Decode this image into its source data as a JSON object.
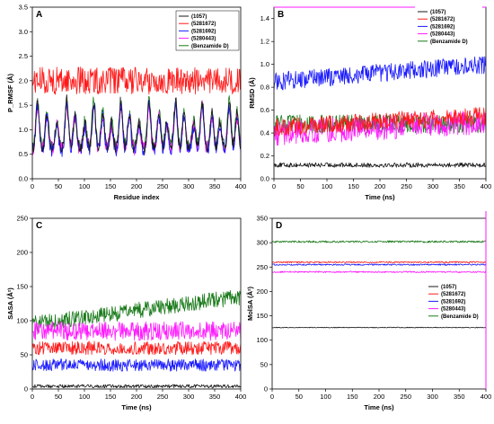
{
  "series_colors": [
    "#1a1a1a",
    "#ff1a1a",
    "#1a1aff",
    "#ff1aff",
    "#1a7a1a"
  ],
  "chart_data": [
    {
      "type": "line",
      "panel_letter": "A",
      "xlabel": "Residue index",
      "ylabel": "P_RMSF (Å)",
      "xlim": [
        0,
        400
      ],
      "ylim": [
        0,
        3.5
      ],
      "xticks": [
        0,
        50,
        100,
        150,
        200,
        250,
        300,
        350,
        400
      ],
      "yticks": [
        0.0,
        0.5,
        1.0,
        1.5,
        2.0,
        2.5,
        3.0,
        3.5
      ],
      "ytick_decimals": 1,
      "legend_position": "top-right",
      "grid": false,
      "series": [
        {
          "name": "(1057)",
          "profile": "rmsf",
          "base": 0.95,
          "amp": 1.0,
          "noise": 0.12
        },
        {
          "name": "(5281672)",
          "profile": "flat",
          "base": 2.0,
          "amp": 0.0,
          "noise": 0.28
        },
        {
          "name": "(5281692)",
          "profile": "rmsf",
          "base": 0.9,
          "amp": 0.95,
          "noise": 0.12
        },
        {
          "name": "(5280443)",
          "profile": "rmsf",
          "base": 0.95,
          "amp": 0.9,
          "noise": 0.14
        },
        {
          "name": "(Benzamide D)",
          "profile": "rmsf",
          "base": 1.0,
          "amp": 0.95,
          "noise": 0.13
        }
      ]
    },
    {
      "type": "line",
      "panel_letter": "B",
      "xlabel": "Time (ns)",
      "ylabel": "RMSD (Å)",
      "xlim": [
        0,
        400
      ],
      "ylim": [
        0,
        1.5
      ],
      "xticks": [
        0,
        50,
        100,
        150,
        200,
        250,
        300,
        350,
        400
      ],
      "yticks": [
        0.0,
        0.2,
        0.4,
        0.6,
        0.8,
        1.0,
        1.2,
        1.4
      ],
      "ytick_decimals": 1,
      "legend_position": "bottom-right",
      "grid": false,
      "series": [
        {
          "name": "(1057)",
          "profile": "flat",
          "base": 0.12,
          "amp": 0.0,
          "noise": 0.02
        },
        {
          "name": "(5281672)",
          "profile": "rise",
          "base": 0.45,
          "amp": 0.1,
          "noise": 0.08
        },
        {
          "name": "(5281692)",
          "profile": "rise",
          "base": 0.85,
          "amp": 0.15,
          "noise": 0.08
        },
        {
          "name": "(5280443)",
          "profile": "rise",
          "base": 0.4,
          "amp": 0.1,
          "noise": 0.11
        },
        {
          "name": "(Benzamide D)",
          "profile": "flat",
          "base": 0.48,
          "amp": 0.0,
          "noise": 0.08
        }
      ]
    },
    {
      "type": "line",
      "panel_letter": "C",
      "xlabel": "Time (ns)",
      "ylabel": "SASA (Å²)",
      "xlim": [
        0,
        400
      ],
      "ylim": [
        0,
        250
      ],
      "xticks": [
        0,
        50,
        100,
        150,
        200,
        250,
        300,
        350,
        400
      ],
      "yticks": [
        0,
        50,
        100,
        150,
        200,
        250
      ],
      "ytick_decimals": 0,
      "legend_position": "none",
      "grid": false,
      "series": [
        {
          "name": "(1057)",
          "profile": "flat",
          "base": 4,
          "amp": 0.0,
          "noise": 2.5
        },
        {
          "name": "(5281672)",
          "profile": "flat",
          "base": 60,
          "amp": 0.0,
          "noise": 10
        },
        {
          "name": "(5281692)",
          "profile": "flat",
          "base": 35,
          "amp": 0.0,
          "noise": 9
        },
        {
          "name": "(5280443)",
          "profile": "flat",
          "base": 85,
          "amp": 0.0,
          "noise": 14
        },
        {
          "name": "(Benzamide D)",
          "profile": "rise",
          "base": 95,
          "amp": 40,
          "noise": 12
        }
      ]
    },
    {
      "type": "line",
      "panel_letter": "D",
      "xlabel": "Time (ns)",
      "ylabel": "MolSA (Å²)",
      "xlim": [
        0,
        400
      ],
      "ylim": [
        0,
        350
      ],
      "xticks": [
        0,
        50,
        100,
        150,
        200,
        250,
        300,
        350,
        400
      ],
      "yticks": [
        0,
        50,
        100,
        150,
        200,
        250,
        300,
        350
      ],
      "ytick_decimals": 0,
      "legend_position": "middle-right",
      "grid": false,
      "series": [
        {
          "name": "(1057)",
          "profile": "flat",
          "base": 126,
          "amp": 0.0,
          "noise": 0.8
        },
        {
          "name": "(5281672)",
          "profile": "flat",
          "base": 260,
          "amp": 0.0,
          "noise": 1.5
        },
        {
          "name": "(5281692)",
          "profile": "flat",
          "base": 255,
          "amp": 0.0,
          "noise": 1.5
        },
        {
          "name": "(5280443)",
          "profile": "flat",
          "base": 240,
          "amp": 0.0,
          "noise": 1.5
        },
        {
          "name": "(Benzamide D)",
          "profile": "flat",
          "base": 302,
          "amp": 0.0,
          "noise": 2.0
        }
      ]
    }
  ]
}
